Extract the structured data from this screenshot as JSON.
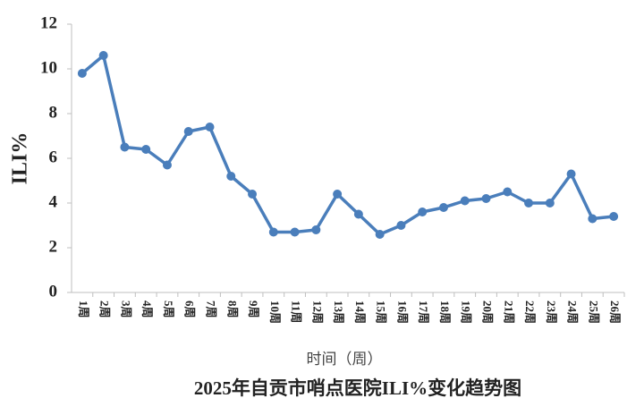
{
  "chart_data": {
    "type": "line",
    "title": "2025年自贡市哨点医院ILI%变化趋势图",
    "x_label": "时间（周）",
    "y_label": "ILI%",
    "categories": [
      "1周",
      "2周",
      "3周",
      "4周",
      "5周",
      "6周",
      "7周",
      "8周",
      "9周",
      "10周",
      "11周",
      "12周",
      "13周",
      "14周",
      "15周",
      "16周",
      "17周",
      "18周",
      "19周",
      "20周",
      "21周",
      "22周",
      "23周",
      "24周",
      "25周",
      "26周"
    ],
    "series": [
      {
        "name": "ILI%",
        "color": "#4a7ebb",
        "values": [
          9.8,
          10.6,
          6.5,
          6.4,
          5.7,
          7.2,
          7.4,
          5.2,
          4.4,
          2.7,
          2.7,
          2.8,
          4.4,
          3.5,
          2.6,
          3.0,
          3.6,
          3.8,
          4.1,
          4.2,
          4.5,
          4.0,
          4.0,
          5.3,
          3.3,
          3.4
        ]
      }
    ],
    "ylim": [
      0,
      12
    ],
    "yticks": [
      0,
      2,
      4,
      6,
      8,
      10,
      12
    ],
    "grid": false
  }
}
